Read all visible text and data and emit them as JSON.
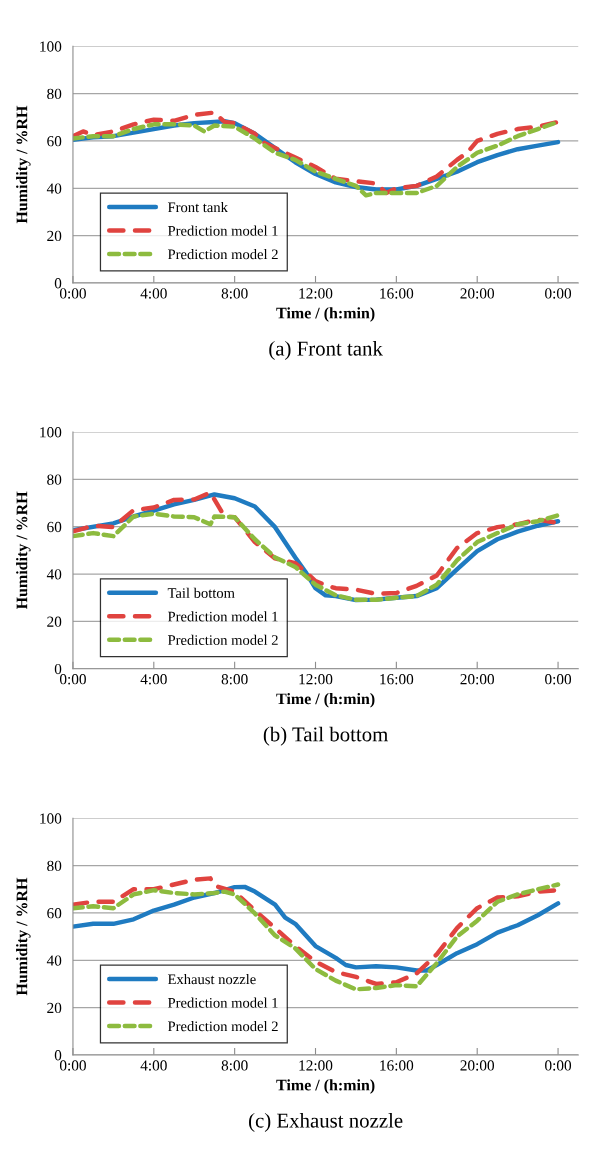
{
  "chart_data": [
    {
      "type": "line",
      "xlabel": "Time / (h:min)",
      "ylabel": "Humidity / %RH",
      "xlim": [
        0,
        25
      ],
      "ylim": [
        0,
        100
      ],
      "xticks": [
        {
          "value": 0,
          "label": "0:00"
        },
        {
          "value": 4,
          "label": "4:00"
        },
        {
          "value": 8,
          "label": "8:00"
        },
        {
          "value": 12,
          "label": "12:00"
        },
        {
          "value": 16,
          "label": "16:00"
        },
        {
          "value": 20,
          "label": "20:00"
        },
        {
          "value": 24,
          "label": "0:00"
        }
      ],
      "yticks": [
        0,
        20,
        40,
        60,
        80,
        100
      ],
      "grid": "y",
      "legend": "bottom left",
      "annotations": [
        "(a) Front tank"
      ],
      "series": [
        {
          "name": "Front tank",
          "color": "#1f7bc1",
          "line_style": "solid",
          "x": [
            0,
            1,
            2,
            3,
            4,
            5,
            6,
            7,
            7.5,
            8,
            9,
            10,
            11,
            12,
            13,
            14,
            15,
            16,
            17,
            18,
            19,
            20,
            21,
            22,
            23,
            24
          ],
          "values": [
            60.5,
            61.5,
            62,
            63.5,
            65,
            66.5,
            67.5,
            68,
            68.3,
            67.5,
            63,
            57,
            51,
            46,
            42.5,
            40.5,
            39.5,
            39.5,
            41,
            44,
            47,
            51,
            54,
            56.5,
            58,
            59.5
          ]
        },
        {
          "name": "Prediction model 1",
          "color": "#e0433f",
          "line_style": "dashed",
          "x": [
            0,
            0.5,
            1,
            2,
            3,
            4,
            5,
            6,
            7,
            7.5,
            8,
            9,
            9.5,
            10,
            11,
            12,
            13,
            14,
            15,
            15.5,
            16,
            17,
            18,
            19,
            19.5,
            20,
            21,
            22,
            23,
            24
          ],
          "values": [
            62,
            64,
            62.5,
            64,
            67,
            69,
            68.5,
            71,
            72,
            68,
            67.5,
            63,
            59,
            57,
            53,
            49,
            44,
            43,
            42,
            38,
            40,
            41,
            45,
            52,
            55,
            60,
            63,
            65,
            66,
            68
          ]
        },
        {
          "name": "Prediction model 2",
          "color": "#8dbb3f",
          "line_style": "dotted",
          "x": [
            0,
            1,
            2,
            3,
            4,
            5,
            6,
            6.5,
            7,
            8,
            9,
            10,
            11,
            12,
            13,
            14,
            14.5,
            15,
            16,
            17,
            18,
            19,
            20,
            21,
            22,
            23,
            24
          ],
          "values": [
            61,
            62,
            62,
            65,
            67,
            67,
            66.5,
            64,
            66.5,
            66,
            61,
            55,
            52,
            47,
            44,
            41,
            37,
            38,
            38,
            38,
            41,
            49,
            55,
            58,
            62,
            65,
            68
          ]
        }
      ]
    },
    {
      "type": "line",
      "xlabel": "Time / (h:min)",
      "ylabel": "Humidity / %RH",
      "xlim": [
        0,
        25
      ],
      "ylim": [
        0,
        100
      ],
      "xticks": [
        {
          "value": 0,
          "label": "0:00"
        },
        {
          "value": 4,
          "label": "4:00"
        },
        {
          "value": 8,
          "label": "8:00"
        },
        {
          "value": 12,
          "label": "12:00"
        },
        {
          "value": 16,
          "label": "16:00"
        },
        {
          "value": 20,
          "label": "20:00"
        },
        {
          "value": 24,
          "label": "0:00"
        }
      ],
      "yticks": [
        0,
        20,
        40,
        60,
        80,
        100
      ],
      "grid": "y",
      "legend": "bottom left",
      "annotations": [
        "(b) Tail bottom"
      ],
      "series": [
        {
          "name": "Tail bottom",
          "color": "#1f7bc1",
          "line_style": "solid",
          "x": [
            0,
            2,
            3,
            4,
            5,
            6,
            7,
            8,
            9,
            10,
            11,
            11.5,
            12,
            12.5,
            13,
            14,
            15,
            16,
            17,
            18,
            19,
            20,
            21,
            22,
            23,
            24
          ],
          "values": [
            58.5,
            61.4,
            64.3,
            66.8,
            69.4,
            71.3,
            73.6,
            72,
            68.5,
            59.8,
            47,
            41,
            34,
            31,
            30.7,
            29,
            29.2,
            30,
            30.7,
            34,
            42,
            49.7,
            54.7,
            57.9,
            60.4,
            62.3
          ]
        },
        {
          "name": "Prediction model 1",
          "color": "#e0433f",
          "line_style": "dashed",
          "x": [
            0,
            1,
            2,
            3,
            4,
            5,
            6,
            6.8,
            7.5,
            8,
            9,
            10,
            11,
            11.5,
            12,
            12.5,
            13,
            14,
            15,
            16,
            17,
            18,
            19,
            20,
            21,
            22,
            23,
            24
          ],
          "values": [
            58,
            60.4,
            59.8,
            67,
            68.1,
            71.3,
            71.5,
            74.4,
            64.3,
            64,
            53.5,
            46.6,
            44.6,
            41,
            37,
            35.3,
            34,
            33.4,
            31.6,
            32,
            35,
            39.4,
            51,
            57.3,
            59.8,
            61,
            63,
            61.6
          ]
        },
        {
          "name": "Prediction model 2",
          "color": "#8dbb3f",
          "line_style": "dotted",
          "x": [
            0,
            1,
            2,
            3,
            4,
            5,
            6,
            6.8,
            7,
            8,
            9,
            10,
            11,
            12,
            13,
            14,
            15,
            16,
            17,
            18,
            19,
            20,
            21,
            22,
            23,
            24
          ],
          "values": [
            56,
            57.3,
            56,
            64.3,
            65.5,
            64.3,
            64,
            61,
            64.3,
            64,
            54.7,
            47,
            43,
            35.5,
            31,
            29.1,
            29.1,
            30,
            30.7,
            35.5,
            45.8,
            53.5,
            57.3,
            61,
            62.3,
            64.8
          ]
        }
      ]
    },
    {
      "type": "line",
      "xlabel": "Time / (h:min)",
      "ylabel": "Humidity / %RH",
      "xlim": [
        0,
        25
      ],
      "ylim": [
        0,
        100
      ],
      "xticks": [
        {
          "value": 0,
          "label": "0:00"
        },
        {
          "value": 4,
          "label": "4:00"
        },
        {
          "value": 8,
          "label": "8:00"
        },
        {
          "value": 12,
          "label": "12:00"
        },
        {
          "value": 16,
          "label": "16:00"
        },
        {
          "value": 20,
          "label": "20:00"
        },
        {
          "value": 24,
          "label": "0:00"
        }
      ],
      "yticks": [
        0,
        20,
        40,
        60,
        80,
        100
      ],
      "grid": "y",
      "legend": "bottom left",
      "annotations": [
        "(c) Exhaust nozzle"
      ],
      "series": [
        {
          "name": "Exhaust nozzle",
          "color": "#1f7bc1",
          "line_style": "solid",
          "x": [
            0,
            1,
            2,
            3,
            4,
            5,
            6,
            7,
            8,
            8.5,
            9,
            10,
            10.5,
            11,
            12,
            13,
            13.5,
            14,
            15,
            16,
            17,
            17.5,
            18,
            19,
            20,
            21,
            22,
            23,
            24
          ],
          "values": [
            54.2,
            55.4,
            55.4,
            57.3,
            61,
            63.5,
            66.5,
            68.4,
            70.9,
            71,
            69,
            63.5,
            58,
            55.4,
            46,
            41,
            38,
            37,
            37.5,
            37,
            35.7,
            35.7,
            38,
            43,
            46.8,
            51.7,
            54.8,
            59,
            64
          ]
        },
        {
          "name": "Prediction model 1",
          "color": "#e0433f",
          "line_style": "dashed",
          "x": [
            0,
            1,
            2,
            3,
            4,
            5,
            6,
            6.8,
            7,
            8,
            9,
            10,
            11,
            12,
            13,
            14,
            15,
            16,
            17,
            18,
            19,
            20,
            21,
            22,
            23,
            24
          ],
          "values": [
            63.5,
            64.7,
            64.7,
            70,
            70,
            72,
            74,
            74.6,
            71.5,
            69,
            61,
            53.6,
            46,
            39.4,
            35,
            33,
            30,
            30.7,
            34.4,
            42.5,
            53.6,
            62,
            66.5,
            67,
            69,
            69.6
          ]
        },
        {
          "name": "Prediction model 2",
          "color": "#8dbb3f",
          "line_style": "dotted",
          "x": [
            0,
            1,
            2,
            3,
            4,
            5,
            6,
            7,
            7.5,
            8,
            9,
            10,
            11,
            12,
            13,
            14,
            15,
            16,
            17,
            18,
            19,
            20,
            21,
            22,
            23,
            24
          ],
          "values": [
            62,
            62.8,
            62,
            67.8,
            69.6,
            68.4,
            67.8,
            68.4,
            69,
            67.8,
            59.8,
            50.5,
            45,
            36.3,
            31.4,
            27.7,
            28.3,
            29.5,
            29,
            38.8,
            50,
            56.7,
            64.7,
            67.8,
            70,
            72
          ]
        }
      ]
    }
  ]
}
